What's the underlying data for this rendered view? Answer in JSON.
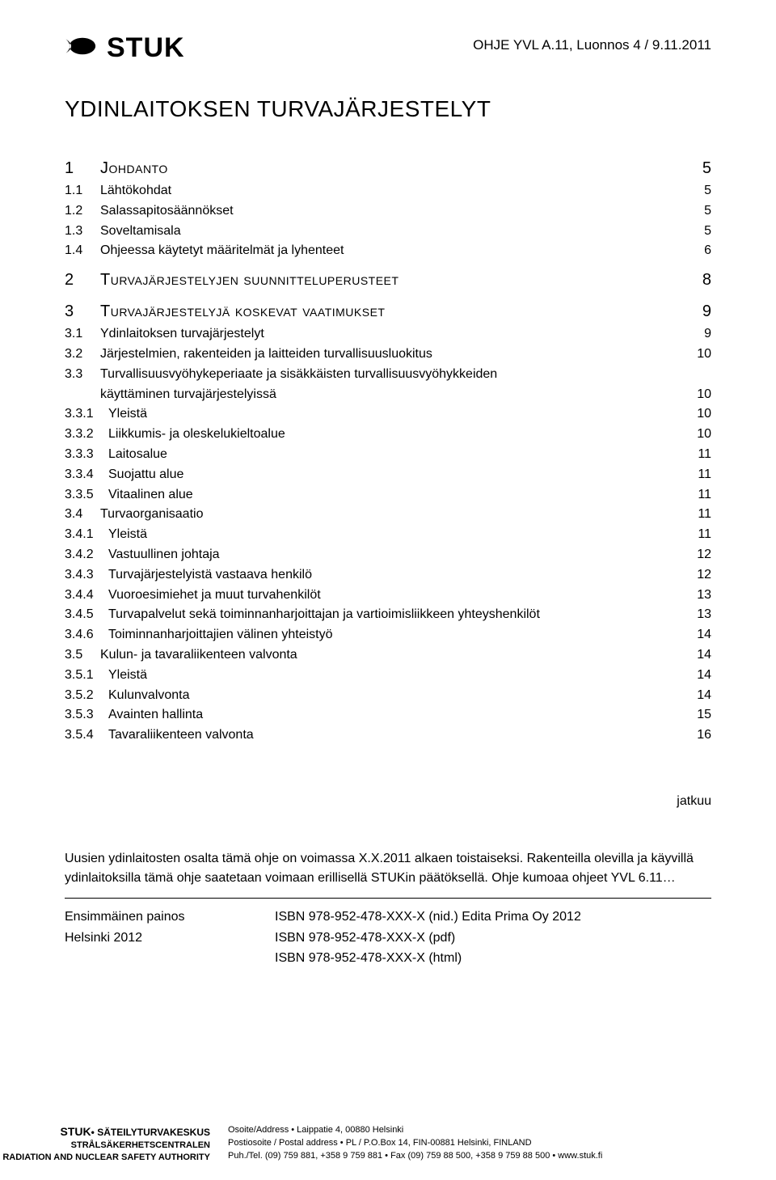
{
  "header": {
    "logo_text": "STUK",
    "doc_ref": "OHJE YVL A.11, Luonnos 4 / 9.11.2011"
  },
  "title": "YDINLAITOKSEN TURVAJÄRJESTELYT",
  "toc": [
    {
      "lvl": 1,
      "num": "1",
      "label": "Johdanto",
      "page": "5"
    },
    {
      "lvl": 2,
      "num": "1.1",
      "label": "Lähtökohdat",
      "page": "5"
    },
    {
      "lvl": 2,
      "num": "1.2",
      "label": "Salassapitosäännökset",
      "page": "5"
    },
    {
      "lvl": 2,
      "num": "1.3",
      "label": "Soveltamisala",
      "page": "5"
    },
    {
      "lvl": 2,
      "num": "1.4",
      "label": "Ohjeessa käytetyt määritelmät ja lyhenteet",
      "page": "6"
    },
    {
      "lvl": 1,
      "num": "2",
      "label": "Turvajärjestelyjen suunnitteluperusteet",
      "page": "8"
    },
    {
      "lvl": 1,
      "num": "3",
      "label": "Turvajärjestelyjä koskevat vaatimukset",
      "page": "9"
    },
    {
      "lvl": 2,
      "num": "3.1",
      "label": "Ydinlaitoksen turvajärjestelyt",
      "page": "9"
    },
    {
      "lvl": 2,
      "num": "3.2",
      "label": "Järjestelmien, rakenteiden ja laitteiden turvallisuusluokitus",
      "page": "10"
    },
    {
      "lvl": 2,
      "num": "3.3",
      "label": "Turvallisuusvyöhykeperiaate ja sisäkkäisten turvallisuusvyöhykkeiden",
      "page": ""
    },
    {
      "lvl": 2,
      "num": "",
      "label": "käyttäminen turvajärjestelyissä",
      "page": "10",
      "cont": true
    },
    {
      "lvl": 3,
      "num": "3.3.1",
      "label": "Yleistä",
      "page": "10"
    },
    {
      "lvl": 3,
      "num": "3.3.2",
      "label": "Liikkumis- ja oleskelukieltoalue",
      "page": "10"
    },
    {
      "lvl": 3,
      "num": "3.3.3",
      "label": "Laitosalue",
      "page": "11"
    },
    {
      "lvl": 3,
      "num": "3.3.4",
      "label": "Suojattu alue",
      "page": "11"
    },
    {
      "lvl": 3,
      "num": "3.3.5",
      "label": "Vitaalinen alue",
      "page": "11"
    },
    {
      "lvl": 2,
      "num": "3.4",
      "label": "Turvaorganisaatio",
      "page": "11"
    },
    {
      "lvl": 3,
      "num": "3.4.1",
      "label": "Yleistä",
      "page": "11"
    },
    {
      "lvl": 3,
      "num": "3.4.2",
      "label": "Vastuullinen johtaja",
      "page": "12"
    },
    {
      "lvl": 3,
      "num": "3.4.3",
      "label": "Turvajärjestelyistä vastaava henkilö",
      "page": "12"
    },
    {
      "lvl": 3,
      "num": "3.4.4",
      "label": "Vuoroesimiehet ja muut turvahenkilöt",
      "page": "13"
    },
    {
      "lvl": 3,
      "num": "3.4.5",
      "label": "Turvapalvelut sekä toiminnanharjoittajan ja vartioimisliikkeen yhteyshenkilöt",
      "page": "13"
    },
    {
      "lvl": 3,
      "num": "3.4.6",
      "label": "Toiminnanharjoittajien välinen yhteistyö",
      "page": "14"
    },
    {
      "lvl": 2,
      "num": "3.5",
      "label": "Kulun- ja tavaraliikenteen valvonta",
      "page": "14"
    },
    {
      "lvl": 3,
      "num": "3.5.1",
      "label": "Yleistä",
      "page": "14"
    },
    {
      "lvl": 3,
      "num": "3.5.2",
      "label": "Kulunvalvonta",
      "page": "14"
    },
    {
      "lvl": 3,
      "num": "3.5.3",
      "label": "Avainten hallinta",
      "page": "15"
    },
    {
      "lvl": 3,
      "num": "3.5.4",
      "label": "Tavaraliikenteen valvonta",
      "page": "16"
    }
  ],
  "continues": "jatkuu",
  "validity": "Uusien ydinlaitosten osalta tämä ohje on voimassa X.X.2011 alkaen toistaiseksi. Rakenteilla olevilla ja käyvillä ydinlaitoksilla tämä ohje saatetaan voimaan erillisellä STUKin päätöksellä. Ohje kumoaa ohjeet YVL 6.11…",
  "edition": {
    "left1": "Ensimmäinen painos",
    "left2": "Helsinki 2012",
    "right1": "ISBN 978-952-478-XXX-X (nid.) Edita Prima Oy 2012",
    "right2": "ISBN 978-952-478-XXX-X (pdf)",
    "right3": "ISBN 978-952-478-XXX-X (html)"
  },
  "footer": {
    "l1a": "STUK",
    "l1b": "• SÄTEILYTURVAKESKUS",
    "l2": "STRÅLSÄKERHETSCENTRALEN",
    "l3": "RADIATION AND NUCLEAR SAFETY AUTHORITY",
    "r1": "Osoite/Address • Laippatie 4, 00880 Helsinki",
    "r2": "Postiosoite / Postal address • PL / P.O.Box 14, FIN-00881 Helsinki, FINLAND",
    "r3": "Puh./Tel. (09) 759 881, +358 9 759 881 • Fax (09) 759 88 500, +358 9 759 88 500 • www.stuk.fi"
  }
}
